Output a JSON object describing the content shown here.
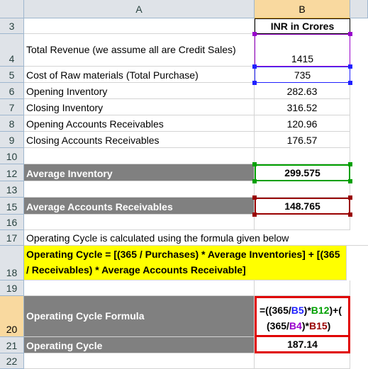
{
  "columns": {
    "a": "A",
    "b": "B"
  },
  "rows": [
    {
      "num": "3",
      "a": "",
      "b": "INR in Crores"
    },
    {
      "num": "4",
      "a": "Total Revenue (we assume all are Credit Sales)",
      "b": "1415"
    },
    {
      "num": "5",
      "a": "Cost of Raw materials (Total Purchase)",
      "b": "735"
    },
    {
      "num": "6",
      "a": "Opening Inventory",
      "b": "282.63"
    },
    {
      "num": "7",
      "a": "Closing Inventory",
      "b": "316.52"
    },
    {
      "num": "8",
      "a": "Opening Accounts Receivables",
      "b": "120.96"
    },
    {
      "num": "9",
      "a": "Closing Accounts Receivables",
      "b": "176.57"
    },
    {
      "num": "10",
      "a": "",
      "b": ""
    },
    {
      "num": "12",
      "a": "Average Inventory",
      "b": "299.575"
    },
    {
      "num": "13",
      "a": "",
      "b": ""
    },
    {
      "num": "15",
      "a": "Average Accounts Receivables",
      "b": "148.765"
    },
    {
      "num": "16",
      "a": "",
      "b": ""
    },
    {
      "num": "17",
      "a": "Operating Cycle is calculated using the formula given below",
      "b": ""
    },
    {
      "num": "18",
      "a": "Operating Cycle = [(365 / Purchases) * Average Inventories] + [(365 / Receivables) * Average Accounts Receivable]",
      "b": ""
    },
    {
      "num": "19",
      "a": "",
      "b": ""
    },
    {
      "num": "20",
      "a": "Operating Cycle Formula",
      "b": ""
    },
    {
      "num": "21",
      "a": "Operating Cycle",
      "b": "187.14"
    },
    {
      "num": "22",
      "a": "",
      "b": ""
    }
  ],
  "formula": {
    "p1": "=((365/",
    "r1": "B5",
    "p2": ")*",
    "r2": "B12",
    "p3": ")+(",
    "p4": "(365/",
    "r3": "B4",
    "p5": ")*",
    "r4": "B15",
    "p6": ")"
  },
  "colors": {
    "ref_b5": "#2020ff",
    "ref_b12": "#00a000",
    "ref_b4": "#9900cc",
    "ref_b15": "#990000",
    "dark_label": "#808080",
    "highlight": "#ffff00",
    "formula_border": "#e00000"
  }
}
